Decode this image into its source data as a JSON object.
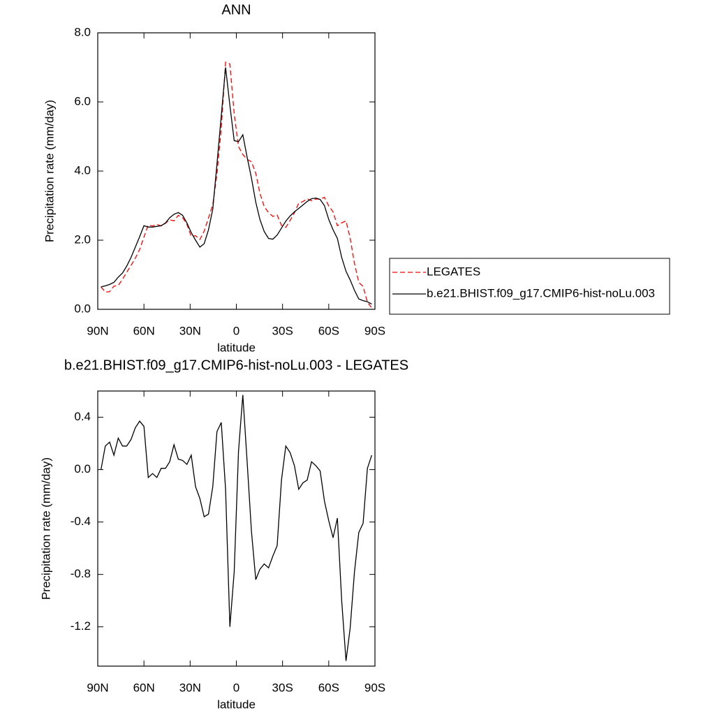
{
  "chart_data": [
    {
      "type": "line",
      "title": "ANN",
      "y_label": "Precipitation rate (mm/day)",
      "x_label": "latitude",
      "x": [
        87.9,
        85.1,
        82.3,
        79.5,
        76.7,
        73.9,
        71.2,
        68.4,
        65.6,
        62.8,
        60.0,
        57.2,
        54.4,
        51.6,
        48.8,
        46.0,
        43.3,
        40.5,
        37.7,
        34.9,
        32.1,
        29.3,
        26.5,
        23.7,
        20.9,
        18.1,
        15.3,
        12.6,
        9.8,
        7.0,
        4.2,
        1.4,
        -1.4,
        -4.2,
        -7.0,
        -9.8,
        -12.6,
        -15.3,
        -18.1,
        -20.9,
        -23.7,
        -26.5,
        -29.3,
        -32.1,
        -34.9,
        -37.7,
        -40.5,
        -43.3,
        -46.0,
        -48.8,
        -51.6,
        -54.4,
        -57.2,
        -60.0,
        -62.8,
        -65.6,
        -68.4,
        -71.2,
        -73.9,
        -76.7,
        -79.5,
        -82.3,
        -85.1,
        -87.9
      ],
      "series": [
        {
          "name": "LEGATES",
          "color": "#ff0000",
          "line_style": "dashed",
          "values": [
            0.65,
            0.5,
            0.51,
            0.67,
            0.69,
            0.87,
            1.07,
            1.27,
            1.48,
            1.73,
            2.09,
            2.44,
            2.41,
            2.46,
            2.41,
            2.49,
            2.59,
            2.56,
            2.72,
            2.65,
            2.46,
            2.11,
            2.13,
            2.02,
            2.26,
            2.64,
            3.03,
            3.91,
            5.24,
            7.15,
            7.1,
            5.66,
            4.71,
            4.48,
            4.34,
            4.27,
            3.94,
            3.36,
            2.97,
            2.8,
            2.69,
            2.73,
            2.43,
            2.37,
            2.57,
            2.79,
            3.07,
            3.12,
            3.2,
            3.14,
            3.19,
            3.19,
            3.24,
            2.99,
            2.82,
            2.42,
            2.5,
            2.56,
            2.06,
            1.33,
            0.78,
            0.66,
            0.21,
            0.04
          ]
        },
        {
          "name": "b.e21.BHIST.f09_g17.CMIP6-hist-noLu.003",
          "color": "#000000",
          "line_style": "solid",
          "values": [
            0.65,
            0.68,
            0.72,
            0.78,
            0.93,
            1.05,
            1.25,
            1.5,
            1.8,
            2.1,
            2.42,
            2.38,
            2.38,
            2.4,
            2.42,
            2.5,
            2.65,
            2.75,
            2.8,
            2.72,
            2.5,
            2.22,
            2.0,
            1.8,
            1.9,
            2.3,
            2.9,
            4.2,
            5.6,
            7.0,
            5.9,
            4.88,
            4.85,
            5.05,
            4.4,
            3.8,
            3.1,
            2.6,
            2.25,
            2.05,
            2.03,
            2.15,
            2.35,
            2.55,
            2.7,
            2.82,
            2.92,
            3.02,
            3.12,
            3.2,
            3.22,
            3.18,
            3.0,
            2.6,
            2.3,
            2.05,
            1.5,
            1.1,
            0.85,
            0.55,
            0.3,
            0.25,
            0.22,
            0.15
          ]
        }
      ],
      "xlim": [
        90,
        -90
      ],
      "xticks": [
        {
          "value": 90,
          "label": "90N"
        },
        {
          "value": 60,
          "label": "60N"
        },
        {
          "value": 30,
          "label": "30N"
        },
        0,
        {
          "value": -30,
          "label": "30S"
        },
        {
          "value": -60,
          "label": "60S"
        },
        {
          "value": -90,
          "label": "90S"
        }
      ],
      "ylim": [
        0,
        8
      ],
      "yticks": [
        {
          "value": 0,
          "label": "0.0"
        },
        {
          "value": 2,
          "label": "2.0"
        },
        {
          "value": 4,
          "label": "4.0"
        },
        {
          "value": 6,
          "label": "6.0"
        },
        {
          "value": 8,
          "label": "8.0"
        }
      ],
      "legend": "right"
    },
    {
      "type": "line",
      "title": "b.e21.BHIST.f09_g17.CMIP6-hist-noLu.003 - LEGATES",
      "y_label": "Precipitation rate (mm/day)",
      "x_label": "latitude",
      "x": [
        87.9,
        85.1,
        82.3,
        79.5,
        76.7,
        73.9,
        71.2,
        68.4,
        65.6,
        62.8,
        60.0,
        57.2,
        54.4,
        51.6,
        48.8,
        46.0,
        43.3,
        40.5,
        37.7,
        34.9,
        32.1,
        29.3,
        26.5,
        23.7,
        20.9,
        18.1,
        15.3,
        12.6,
        9.8,
        7.0,
        4.2,
        1.4,
        -1.4,
        -4.2,
        -7.0,
        -9.8,
        -12.6,
        -15.3,
        -18.1,
        -20.9,
        -23.7,
        -26.5,
        -29.3,
        -32.1,
        -34.9,
        -37.7,
        -40.5,
        -43.3,
        -46.0,
        -48.8,
        -51.6,
        -54.4,
        -57.2,
        -60.0,
        -62.8,
        -65.6,
        -68.4,
        -71.2,
        -73.9,
        -76.7,
        -79.5,
        -82.3,
        -85.1,
        -87.9
      ],
      "values": [
        0.0,
        0.18,
        0.21,
        0.11,
        0.24,
        0.18,
        0.18,
        0.23,
        0.32,
        0.37,
        0.33,
        -0.06,
        -0.03,
        -0.06,
        0.01,
        0.01,
        0.06,
        0.19,
        0.08,
        0.07,
        0.04,
        0.11,
        -0.13,
        -0.22,
        -0.36,
        -0.34,
        -0.13,
        0.29,
        0.36,
        -0.15,
        -1.2,
        -0.78,
        0.14,
        0.57,
        0.06,
        -0.47,
        -0.84,
        -0.76,
        -0.72,
        -0.75,
        -0.66,
        -0.58,
        -0.08,
        0.18,
        0.13,
        0.03,
        -0.15,
        -0.1,
        -0.08,
        0.06,
        0.03,
        -0.01,
        -0.24,
        -0.39,
        -0.52,
        -0.37,
        -1.0,
        -1.46,
        -1.21,
        -0.78,
        -0.48,
        -0.41,
        0.01,
        0.11
      ],
      "color": "#000000",
      "xlim": [
        90,
        -90
      ],
      "xticks": [
        {
          "value": 90,
          "label": "90N"
        },
        {
          "value": 60,
          "label": "60N"
        },
        {
          "value": 30,
          "label": "30N"
        },
        0,
        {
          "value": -30,
          "label": "30S"
        },
        {
          "value": -60,
          "label": "60S"
        },
        {
          "value": -90,
          "label": "90S"
        }
      ],
      "ylim": [
        -1.5,
        0.6
      ],
      "yticks": [
        {
          "value": 0.4,
          "label": "0.4"
        },
        {
          "value": 0,
          "label": "0.0"
        },
        -0.4,
        -0.8,
        -1.2
      ]
    }
  ]
}
